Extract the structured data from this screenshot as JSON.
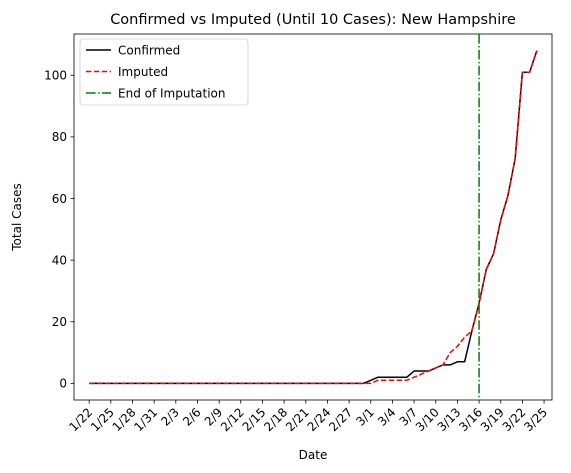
{
  "chart_data": {
    "type": "line",
    "title": "Confirmed vs Imputed (Until 10 Cases): New Hampshire",
    "xlabel": "Date",
    "ylabel": "Total Cases",
    "x_tick_labels": [
      "1/22",
      "1/25",
      "1/28",
      "1/31",
      "2/3",
      "2/6",
      "2/9",
      "2/12",
      "2/15",
      "2/18",
      "2/21",
      "2/24",
      "2/27",
      "3/1",
      "3/4",
      "3/7",
      "3/10",
      "3/13",
      "3/16",
      "3/19",
      "3/22",
      "3/25"
    ],
    "yticks": [
      0,
      20,
      40,
      60,
      80,
      100
    ],
    "ylim": [
      -5.4,
      113.4
    ],
    "x_start_index": 0,
    "legend_position": "upper-left",
    "grid": false,
    "series": [
      {
        "name": "Confirmed",
        "color": "#000000",
        "dash": "solid",
        "values": [
          0,
          0,
          0,
          0,
          0,
          0,
          0,
          0,
          0,
          0,
          0,
          0,
          0,
          0,
          0,
          0,
          0,
          0,
          0,
          0,
          0,
          0,
          0,
          0,
          0,
          0,
          0,
          0,
          0,
          0,
          0,
          0,
          0,
          0,
          0,
          0,
          0,
          0,
          0,
          1,
          2,
          2,
          2,
          2,
          2,
          4,
          4,
          4,
          5,
          6,
          6,
          7,
          7,
          17,
          26,
          37,
          42,
          53,
          61,
          73,
          101,
          101,
          108
        ]
      },
      {
        "name": "Imputed",
        "color": "#ff0000",
        "dash": "dashed",
        "values": [
          0,
          0,
          0,
          0,
          0,
          0,
          0,
          0,
          0,
          0,
          0,
          0,
          0,
          0,
          0,
          0,
          0,
          0,
          0,
          0,
          0,
          0,
          0,
          0,
          0,
          0,
          0,
          0,
          0,
          0,
          0,
          0,
          0,
          0,
          0,
          0,
          0,
          0,
          0,
          0,
          1,
          1,
          1,
          1,
          1,
          2,
          3,
          4,
          5,
          6,
          10,
          12,
          15,
          17,
          26,
          37,
          42,
          53,
          61,
          73,
          101,
          101,
          108
        ]
      }
    ],
    "vline": {
      "name": "End of Imputation",
      "x_label": "3/16",
      "color": "#008000",
      "dash": "dashdot"
    }
  }
}
